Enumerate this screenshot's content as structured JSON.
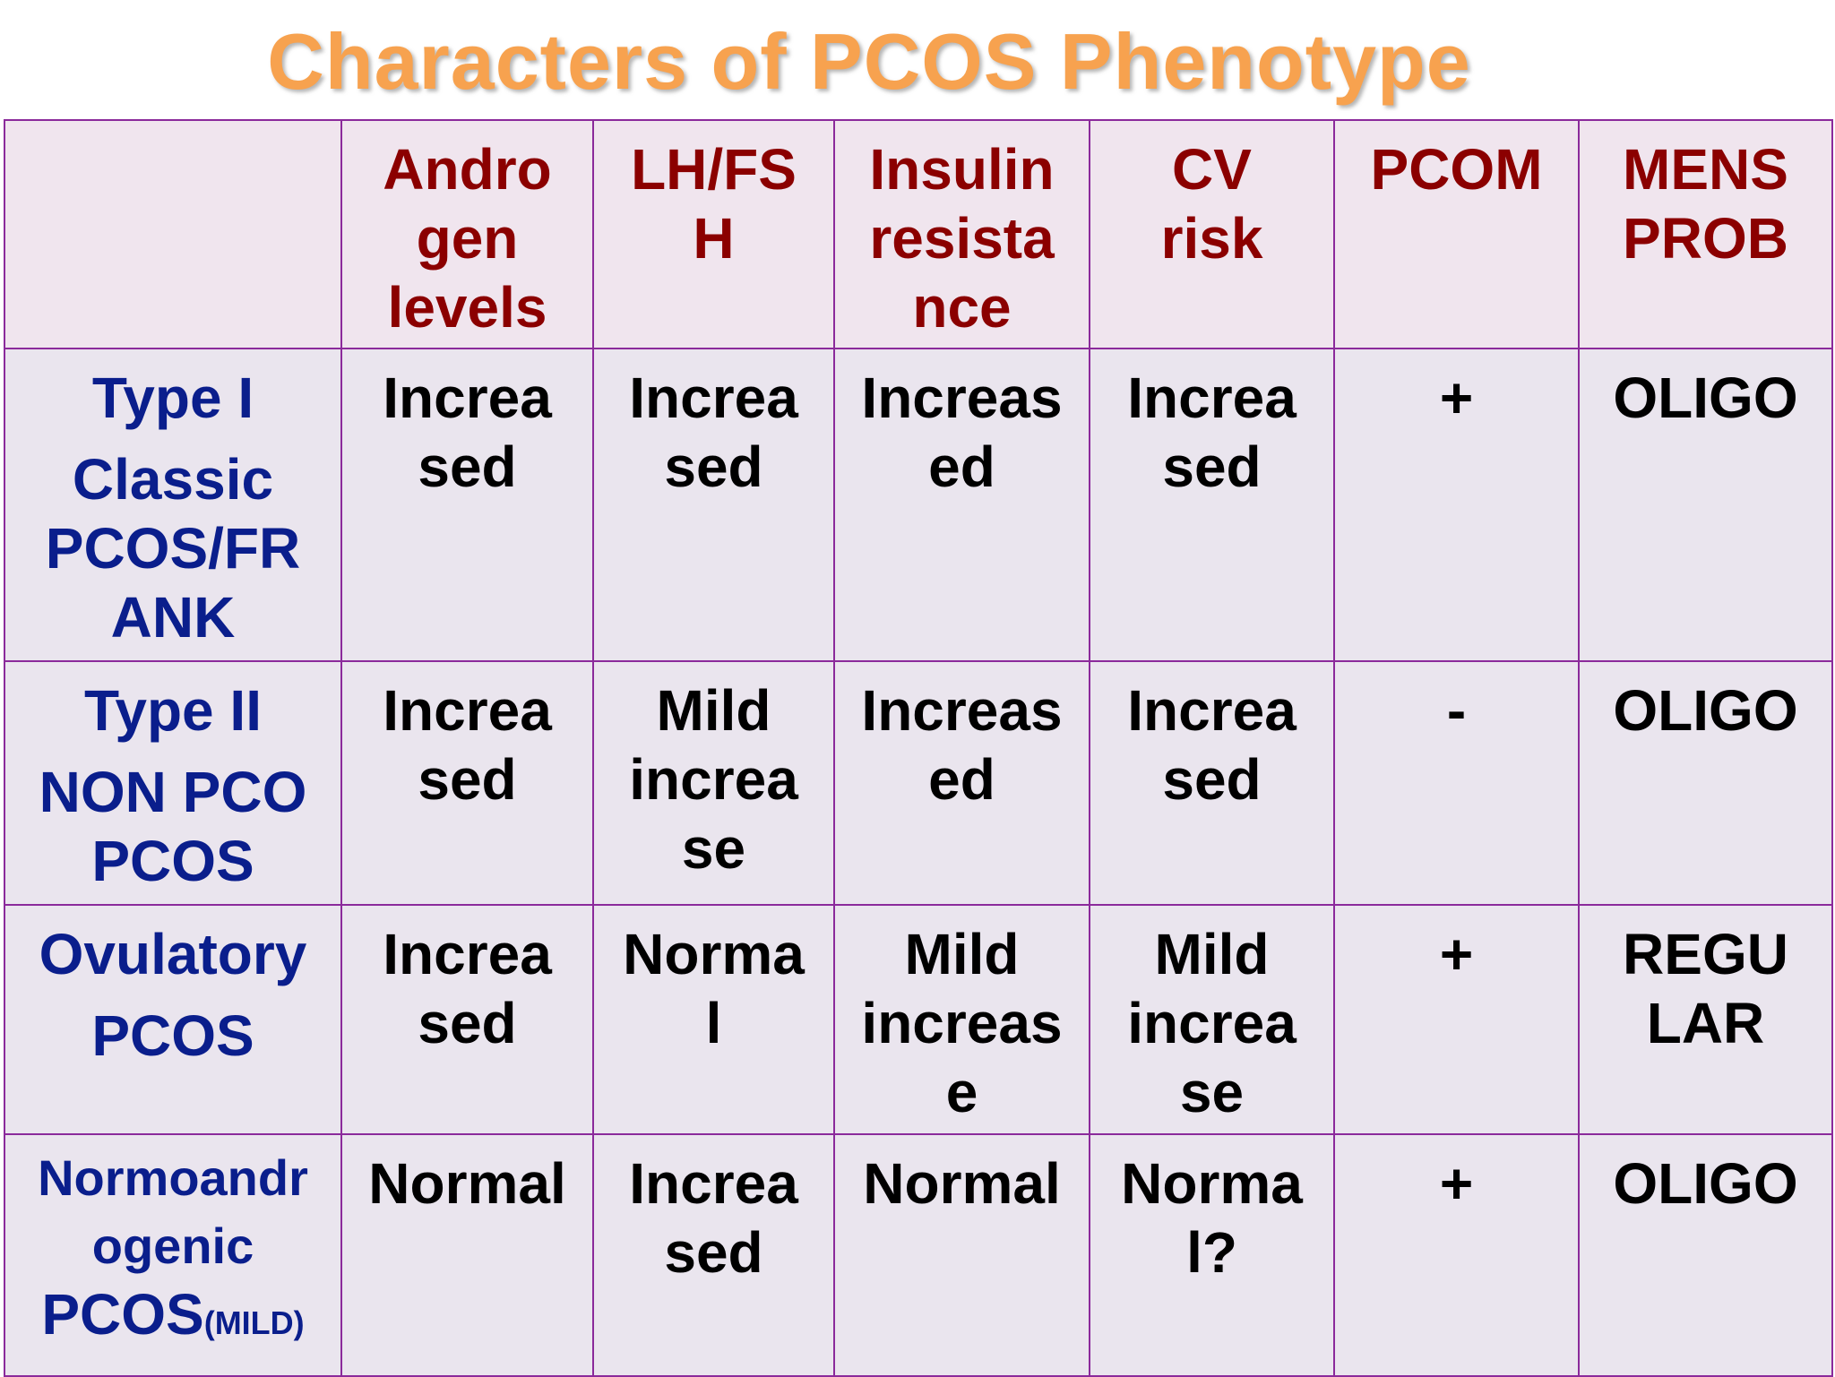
{
  "title": "Characters of PCOS Phenotype",
  "columns": [
    {
      "key": "androgen",
      "lines": [
        "Andro",
        "gen",
        "levels"
      ]
    },
    {
      "key": "lhfsh",
      "lines": [
        "LH/FS",
        "H"
      ]
    },
    {
      "key": "insulin",
      "lines": [
        "Insulin",
        "resista",
        "nce"
      ]
    },
    {
      "key": "cv",
      "lines": [
        "CV",
        "risk"
      ]
    },
    {
      "key": "pcom",
      "lines": [
        "PCOM"
      ]
    },
    {
      "key": "mens",
      "lines": [
        "MENS",
        "PROB"
      ]
    }
  ],
  "rows": [
    {
      "label": [
        "Type I",
        "Classic",
        "PCOS/FR",
        "ANK"
      ],
      "cells": [
        [
          "Increa",
          "sed"
        ],
        [
          "Increa",
          "sed"
        ],
        [
          "Increas",
          "ed"
        ],
        [
          "Increa",
          "sed"
        ],
        [
          "+"
        ],
        [
          "OLIGO"
        ]
      ]
    },
    {
      "label": [
        "Type II",
        "NON PCO",
        "PCOS"
      ],
      "cells": [
        [
          "Increa",
          "sed"
        ],
        [
          "Mild",
          "increa",
          "se"
        ],
        [
          "Increas",
          "ed"
        ],
        [
          "Increa",
          "sed"
        ],
        [
          "-"
        ],
        [
          "OLIGO"
        ]
      ]
    },
    {
      "label": [
        "Ovulatory",
        "PCOS"
      ],
      "cells": [
        [
          "Increa",
          "sed"
        ],
        [
          "Norma",
          "l"
        ],
        [
          "Mild",
          "increas",
          "e"
        ],
        [
          "Mild",
          "increa",
          "se"
        ],
        [
          "+"
        ],
        [
          "REGU",
          "LAR"
        ]
      ]
    },
    {
      "label": [
        "Normoandr",
        "ogenic",
        "PCOS"
      ],
      "label_suffix": "(MILD)",
      "cells": [
        [
          "Normal"
        ],
        [
          "Increa",
          "sed"
        ],
        [
          "Normal"
        ],
        [
          "Norma",
          "l?"
        ],
        [
          "+"
        ],
        [
          "OLIGO"
        ]
      ]
    }
  ]
}
